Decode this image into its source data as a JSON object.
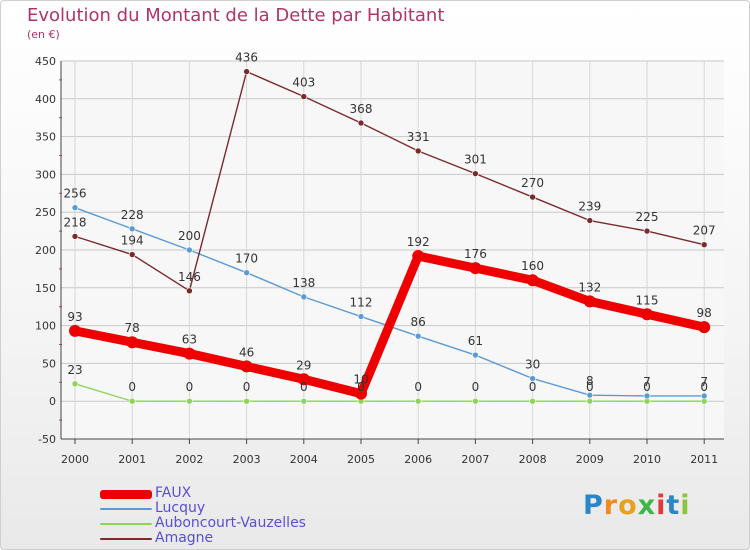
{
  "chart_data": {
    "type": "line",
    "title": "Evolution du Montant de la Dette par Habitant",
    "subtitle": "(en €)",
    "categories": [
      "2000",
      "2001",
      "2002",
      "2003",
      "2004",
      "2005",
      "2006",
      "2007",
      "2008",
      "2009",
      "2010",
      "2011"
    ],
    "ylim": [
      -50,
      450
    ],
    "yticks": [
      -50,
      0,
      50,
      100,
      150,
      200,
      250,
      300,
      350,
      400,
      450
    ],
    "grid": true,
    "legend_position": "bottom-left",
    "series": [
      {
        "name": "FAUX",
        "color": "#ee0000",
        "values": [
          93,
          78,
          63,
          46,
          29,
          10,
          192,
          176,
          160,
          132,
          115,
          98
        ]
      },
      {
        "name": "Lucquy",
        "color": "#5b9bd5",
        "values": [
          256,
          228,
          200,
          170,
          138,
          112,
          86,
          61,
          30,
          8,
          7,
          7
        ]
      },
      {
        "name": "Auboncourt-Vauzelles",
        "color": "#8fd45a",
        "values": [
          23,
          0,
          0,
          0,
          0,
          0,
          0,
          0,
          0,
          0,
          0,
          0
        ]
      },
      {
        "name": "Amagne",
        "color": "#7a2a2a",
        "values": [
          218,
          194,
          146,
          436,
          403,
          368,
          331,
          301,
          270,
          239,
          225,
          207
        ]
      }
    ]
  },
  "brand": {
    "text": "Proxiti"
  },
  "colors": {
    "title": "#b0346b",
    "legend_text": "#5a4fd6",
    "axis": "#333333"
  }
}
